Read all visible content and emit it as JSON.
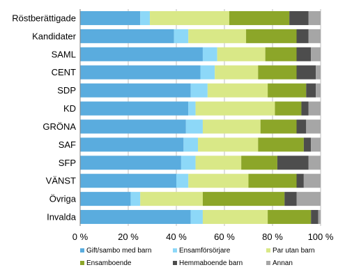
{
  "chart_data": {
    "type": "bar",
    "orientation": "horizontal",
    "stacked": true,
    "stack_mode": "percent",
    "categories": [
      "Röstberättigade",
      "Kandidater",
      "SAML",
      "CENT",
      "SDP",
      "KD",
      "GRÖNA",
      "SAF",
      "SFP",
      "VÄNST",
      "Övriga",
      "Invalda"
    ],
    "series": [
      {
        "name": "Gift/sambo med barn",
        "color": "#5aacde",
        "values": [
          25,
          39,
          51,
          50,
          46,
          45,
          44,
          43,
          42,
          40,
          21,
          46
        ]
      },
      {
        "name": "Ensamförsörjare",
        "color": "#8dd8f8",
        "values": [
          4,
          6,
          6,
          6,
          7,
          3,
          7,
          6,
          6,
          5,
          4,
          5
        ]
      },
      {
        "name": "Par utan barn",
        "color": "#d9e887",
        "values": [
          33,
          24,
          20,
          18,
          25,
          33,
          24,
          25,
          19,
          25,
          26,
          27
        ]
      },
      {
        "name": "Ensamboende",
        "color": "#8ca629",
        "values": [
          25,
          21,
          13,
          16,
          16,
          11,
          15,
          19,
          15,
          20,
          34,
          18
        ]
      },
      {
        "name": "Hemmaboende barn",
        "color": "#4d4d4d",
        "values": [
          8,
          5,
          6,
          8,
          4,
          3,
          4,
          3,
          13,
          3,
          5,
          3
        ]
      },
      {
        "name": "Annan",
        "color": "#a6a6a6",
        "values": [
          5,
          5,
          4,
          2,
          2,
          5,
          6,
          4,
          5,
          7,
          10,
          1
        ]
      }
    ],
    "xlim": [
      0,
      100
    ],
    "xticks": [
      "0 %",
      "20 %",
      "40 %",
      "60 %",
      "80 %",
      "100 %"
    ],
    "grid": "vertical",
    "legend_position": "bottom"
  }
}
